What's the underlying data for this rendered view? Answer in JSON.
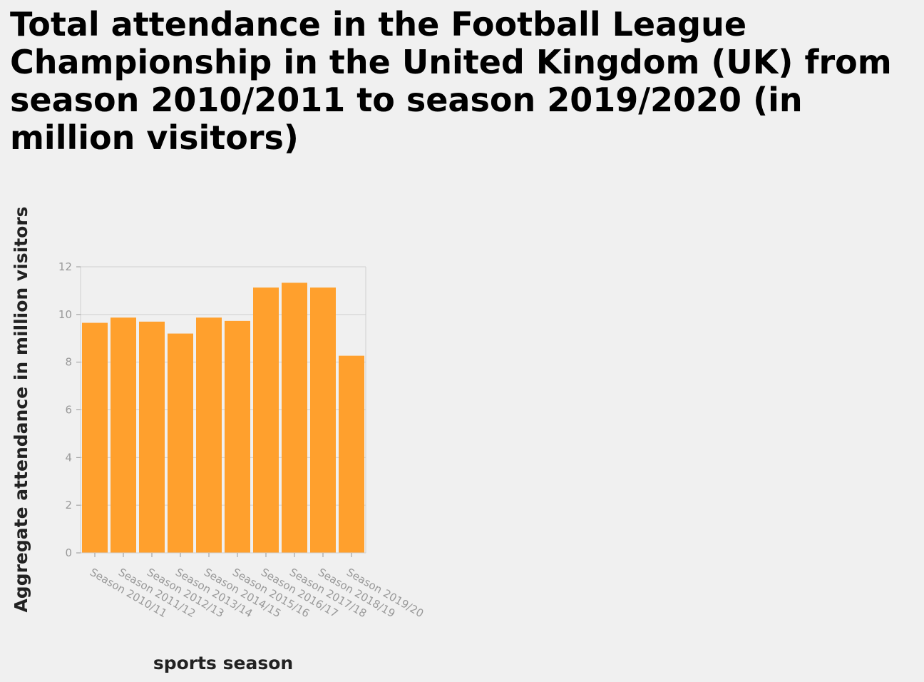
{
  "chart_data": {
    "type": "bar",
    "title": "Total attendance in the Football League Championship in the United Kingdom (UK) from season 2010/2011 to season 2019/2020 (in million visitors)",
    "xlabel": "sports season",
    "ylabel": "Aggregate attendance in million visitors",
    "categories": [
      "Season 2010/11",
      "Season 2011/12",
      "Season 2012/13",
      "Season 2013/14",
      "Season 2014/15",
      "Season 2015/16",
      "Season 2016/17",
      "Season 2017/18",
      "Season 2018/19",
      "Season 2019/20"
    ],
    "values": [
      9.65,
      9.87,
      9.7,
      9.2,
      9.87,
      9.73,
      11.13,
      11.33,
      11.13,
      8.27
    ],
    "ylim": [
      0,
      12
    ],
    "yticks": [
      0,
      2,
      4,
      6,
      8,
      10,
      12
    ],
    "grid": true,
    "bar_color": "#ffa02d",
    "grid_color": "#d0d0d0",
    "tick_color": "#999999"
  }
}
